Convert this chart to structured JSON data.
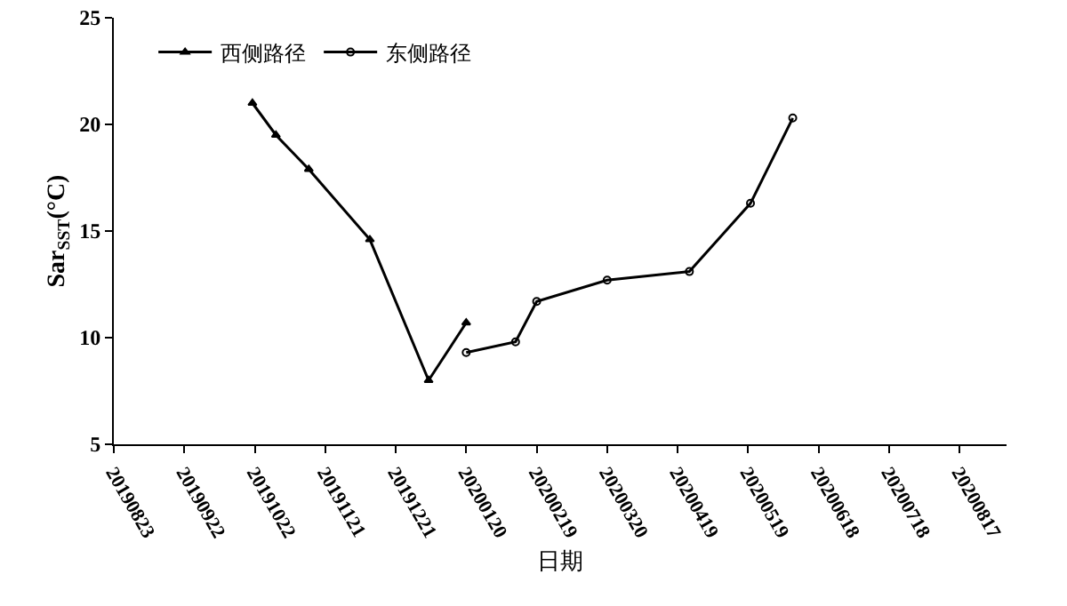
{
  "chart_data": {
    "type": "line",
    "xlabel": "日期",
    "ylabel": "Sar$_{SST}$(°C)",
    "xlim": [
      "2019-08-23",
      "2020-09-06"
    ],
    "xticks": [
      {
        "value": "2019-08-23",
        "label": "20190823"
      },
      {
        "value": "2019-09-22",
        "label": "20190922"
      },
      {
        "value": "2019-10-22",
        "label": "20191022"
      },
      {
        "value": "2019-11-21",
        "label": "20191121"
      },
      {
        "value": "2019-12-21",
        "label": "20191221"
      },
      {
        "value": "2020-01-20",
        "label": "20200120"
      },
      {
        "value": "2020-02-19",
        "label": "20200219"
      },
      {
        "value": "2020-03-20",
        "label": "20200320"
      },
      {
        "value": "2020-04-19",
        "label": "20200419"
      },
      {
        "value": "2020-05-19",
        "label": "20200519"
      },
      {
        "value": "2020-06-18",
        "label": "20200618"
      },
      {
        "value": "2020-07-18",
        "label": "20200718"
      },
      {
        "value": "2020-08-17",
        "label": "20200817"
      }
    ],
    "ylim": [
      5,
      25
    ],
    "yticks": [
      5,
      10,
      15,
      20,
      25
    ],
    "grid": false,
    "legend": "top left",
    "series": [
      {
        "name": "西侧路径",
        "color": "#000000",
        "marker": "triangle",
        "x": [
          "2019-10-21",
          "2019-10-31",
          "2019-11-14",
          "2019-12-10",
          "2020-01-04",
          "2020-01-20"
        ],
        "values": [
          21.0,
          19.5,
          17.9,
          14.6,
          8.0,
          10.7
        ]
      },
      {
        "name": "东侧路径",
        "color": "#000000",
        "marker": "circle",
        "x": [
          "2020-01-20",
          "2020-02-10",
          "2020-02-19",
          "2020-03-20",
          "2020-04-24",
          "2020-05-20",
          "2020-06-07"
        ],
        "values": [
          9.3,
          9.8,
          11.7,
          12.7,
          13.1,
          16.3,
          20.3
        ]
      }
    ]
  }
}
